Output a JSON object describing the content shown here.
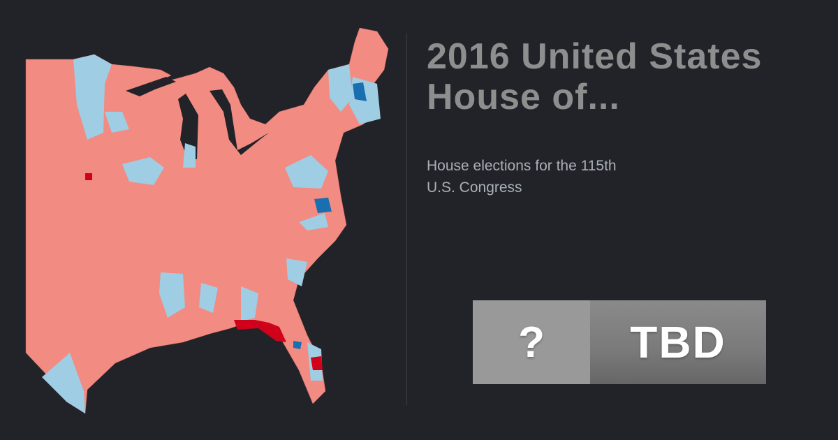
{
  "title": "2016 United States House of...",
  "title_lines": [
    "2016 United States",
    "House of..."
  ],
  "subtitle_lines": [
    "House elections for the 115th",
    "U.S. Congress"
  ],
  "result": {
    "winner_symbol": "?",
    "status": "TBD"
  },
  "map": {
    "colors": {
      "background": "#212328",
      "republican_lean": "#f28b82",
      "republican_strong": "#d0021b",
      "democrat_lean": "#9fcde3",
      "democrat_strong": "#1a6fb0"
    }
  }
}
